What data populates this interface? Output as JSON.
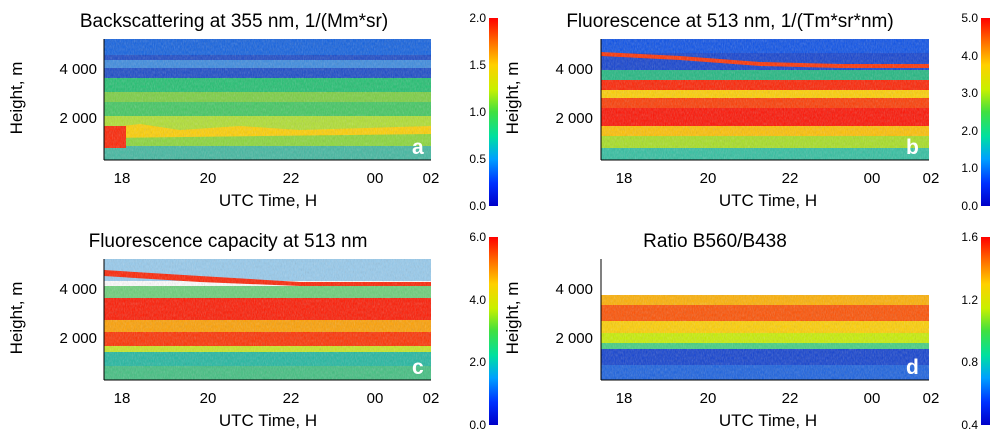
{
  "chart_data": [
    {
      "type": "heatmap",
      "title": "Backscattering at 355 nm, 1/(Mm*sr)",
      "xlabel": "UTC Time, H",
      "ylabel": "Height, m",
      "x_ticks": [
        "18",
        "20",
        "22",
        "00",
        "02"
      ],
      "y_ticks": [
        "2 000",
        "4 000"
      ],
      "colorbar_ticks": [
        "0.0",
        "0.5",
        "1.0",
        "1.5",
        "2.0"
      ],
      "colorbar_range": [
        0.0,
        2.0
      ],
      "panel_letter": "a",
      "layers": [
        {
          "height": 4400,
          "value": 0.55
        },
        {
          "height": 3300,
          "value": 0.8
        },
        {
          "height": 2700,
          "value": 1.0
        },
        {
          "height": 2100,
          "value": 1.25
        },
        {
          "height": 1400,
          "value": 1.45
        },
        {
          "height": 900,
          "value": 2.0
        }
      ]
    },
    {
      "type": "heatmap",
      "title": "Fluorescence at 513 nm, 1/(Tm*sr*nm)",
      "xlabel": "UTC Time, H",
      "ylabel": "Height, m",
      "x_ticks": [
        "18",
        "20",
        "22",
        "00",
        "02"
      ],
      "y_ticks": [
        "2 000",
        "4 000"
      ],
      "colorbar_ticks": [
        "0.0",
        "1.0",
        "2.0",
        "3.0",
        "4.0",
        "5.0"
      ],
      "colorbar_range": [
        0.0,
        5.0
      ],
      "panel_letter": "b",
      "layers": [
        {
          "height": 4600,
          "value": 5.0
        },
        {
          "height": 3400,
          "value": 4.8
        },
        {
          "height": 2900,
          "value": 4.9
        },
        {
          "height": 2100,
          "value": 5.0
        },
        {
          "height": 1400,
          "value": 3.2
        },
        {
          "height": 700,
          "value": 2.0
        }
      ]
    },
    {
      "type": "heatmap",
      "title": "Fluorescence capacity at 513 nm",
      "xlabel": "UTC Time, H",
      "ylabel": "Height, m",
      "x_ticks": [
        "18",
        "20",
        "22",
        "00",
        "02"
      ],
      "y_ticks": [
        "2 000",
        "4 000"
      ],
      "colorbar_ticks": [
        "0.0",
        "2.0",
        "4.0",
        "6.0"
      ],
      "colorbar_range": [
        0.0,
        6.0
      ],
      "panel_letter": "c",
      "layers": [
        {
          "height": 4600,
          "value": 5.8
        },
        {
          "height": 3000,
          "value": 5.9
        },
        {
          "height": 2100,
          "value": 5.5
        },
        {
          "height": 1400,
          "value": 3.5
        },
        {
          "height": 700,
          "value": 2.0
        }
      ]
    },
    {
      "type": "heatmap",
      "title": "Ratio B560/B438",
      "xlabel": "UTC Time, H",
      "ylabel": "Height, m",
      "x_ticks": [
        "18",
        "20",
        "22",
        "00",
        "02"
      ],
      "y_ticks": [
        "2 000",
        "4 000"
      ],
      "colorbar_ticks": [
        "0.4",
        "0.8",
        "1.2",
        "1.6"
      ],
      "colorbar_range": [
        0.4,
        1.6
      ],
      "panel_letter": "d",
      "layers": [
        {
          "height": 3600,
          "value": 1.5
        },
        {
          "height": 2600,
          "value": 1.35
        },
        {
          "height": 1800,
          "value": 1.1
        },
        {
          "height": 1200,
          "value": 0.6
        },
        {
          "height": 600,
          "value": 0.45
        }
      ]
    }
  ]
}
